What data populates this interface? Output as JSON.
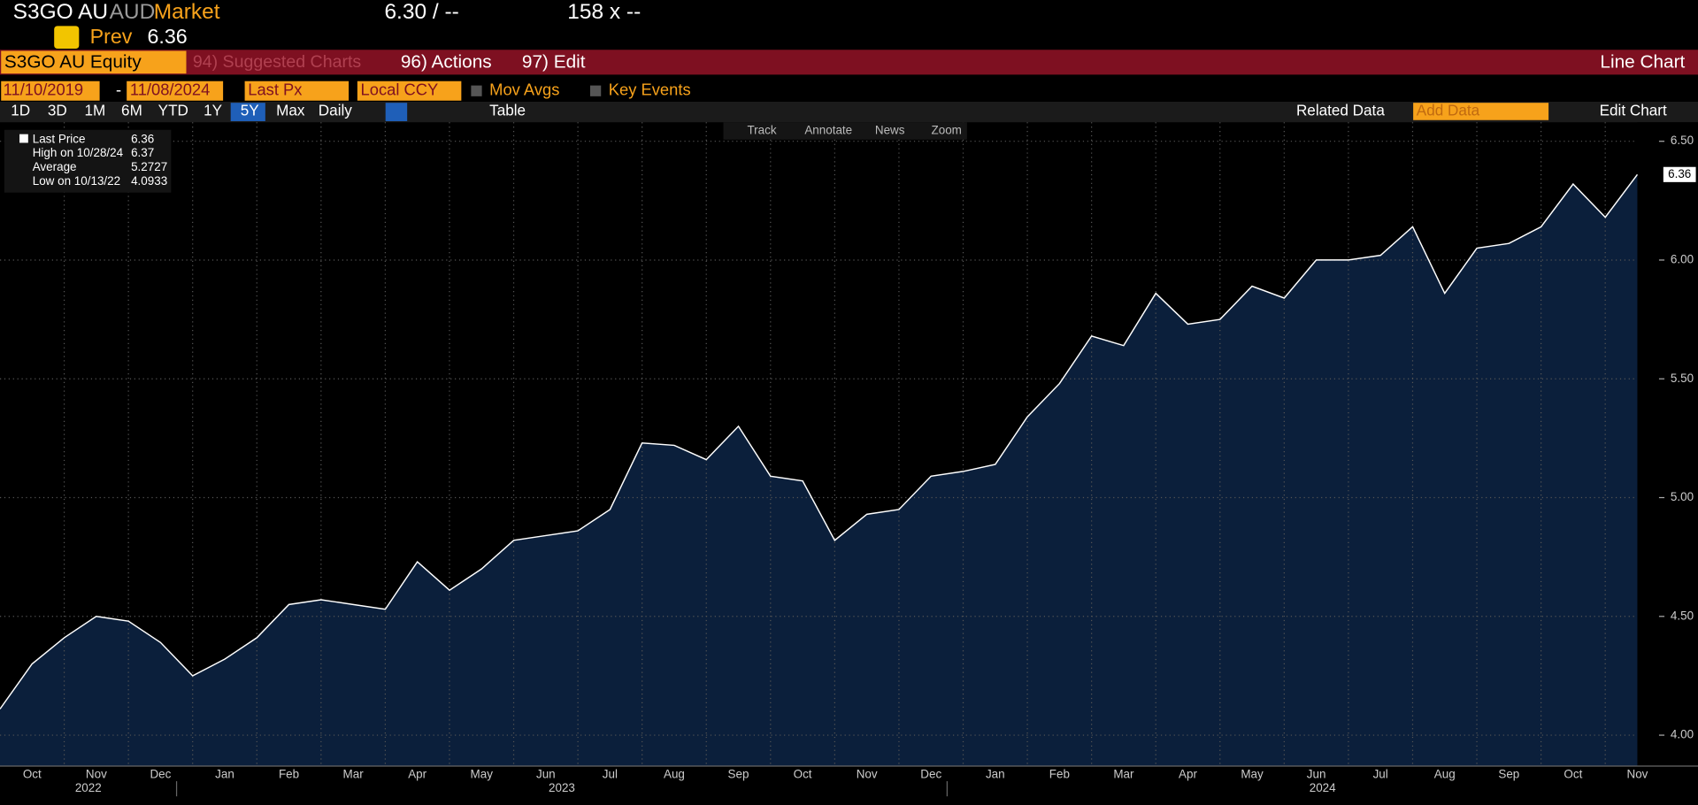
{
  "header": {
    "ticker": "S3GO AU",
    "currency": "AUD",
    "market": "Market",
    "price": "6.30 / --",
    "size": "158 x --",
    "prev_label": "Prev",
    "prev": 6.36
  },
  "toolbar": {
    "security": "S3GO AU Equity",
    "suggested": "94) Suggested Charts",
    "actions": "96) Actions",
    "edit": "97) Edit",
    "chart_type": "Line Chart"
  },
  "controls": {
    "start": "11/10/2019",
    "end": "11/08/2024",
    "field": "Last Px",
    "currency": "Local CCY",
    "mov_avgs": "Mov Avgs",
    "key_events": "Key Events",
    "periods": [
      "1D",
      "3D",
      "1M",
      "6M",
      "YTD",
      "1Y",
      "5Y",
      "Max"
    ],
    "active_period": "5Y",
    "frequency": "Daily",
    "table": "Table",
    "related": "Related Data",
    "add_data": "Add Data",
    "edit_chart": "Edit Chart"
  },
  "chart_tools": [
    "Track",
    "Annotate",
    "News",
    "Zoom"
  ],
  "legend": [
    {
      "label": "Last Price",
      "value": 6.36
    },
    {
      "label": "High on 10/28/24",
      "value": 6.37
    },
    {
      "label": "Average",
      "value": 5.2727
    },
    {
      "label": "Low on 10/13/22",
      "value": 4.0933
    }
  ],
  "chart_data": {
    "type": "area",
    "categories": [
      null,
      "Oct",
      null,
      "Nov",
      null,
      "Dec",
      null,
      "Jan",
      null,
      "Feb",
      null,
      "Mar",
      null,
      "Apr",
      null,
      "May",
      null,
      "Jun",
      null,
      "Jul",
      null,
      "Aug",
      null,
      "Sep",
      null,
      "Oct",
      null,
      "Nov",
      null,
      "Dec",
      null,
      "Jan",
      null,
      "Feb",
      null,
      "Mar",
      null,
      "Apr",
      null,
      "May",
      null,
      "Jun",
      null,
      "Jul",
      null,
      "Aug",
      null,
      "Sep",
      null,
      "Oct",
      null,
      "Nov"
    ],
    "years": [
      "2022",
      "2023",
      "2024"
    ],
    "series": [
      {
        "name": "Last Price",
        "color": "#ffffff",
        "fill": "#0b1f3b",
        "values": [
          4.11,
          4.3,
          4.41,
          4.5,
          4.48,
          4.39,
          4.25,
          4.32,
          4.41,
          4.55,
          4.57,
          4.55,
          4.53,
          4.73,
          4.61,
          4.7,
          4.82,
          4.84,
          4.86,
          4.95,
          5.23,
          5.22,
          5.16,
          5.3,
          5.09,
          5.07,
          4.82,
          4.93,
          4.95,
          5.09,
          5.11,
          5.14,
          5.34,
          5.48,
          5.68,
          5.64,
          5.86,
          5.73,
          5.75,
          5.89,
          5.84,
          6.0,
          6.0,
          6.02,
          6.14,
          5.86,
          6.05,
          6.07,
          6.14,
          6.32,
          6.18,
          6.36
        ]
      }
    ],
    "ylim": [
      3.87,
      6.58
    ],
    "yticks": [
      {
        "value": 4,
        "label": "4.00"
      },
      {
        "value": 4.5,
        "label": "4.50"
      },
      {
        "value": 5,
        "label": "5.00"
      },
      {
        "value": 5.5,
        "label": "5.50"
      },
      {
        "value": 6,
        "label": "6.00"
      },
      {
        "value": 6.5,
        "label": "6.50"
      }
    ],
    "grid": true
  }
}
